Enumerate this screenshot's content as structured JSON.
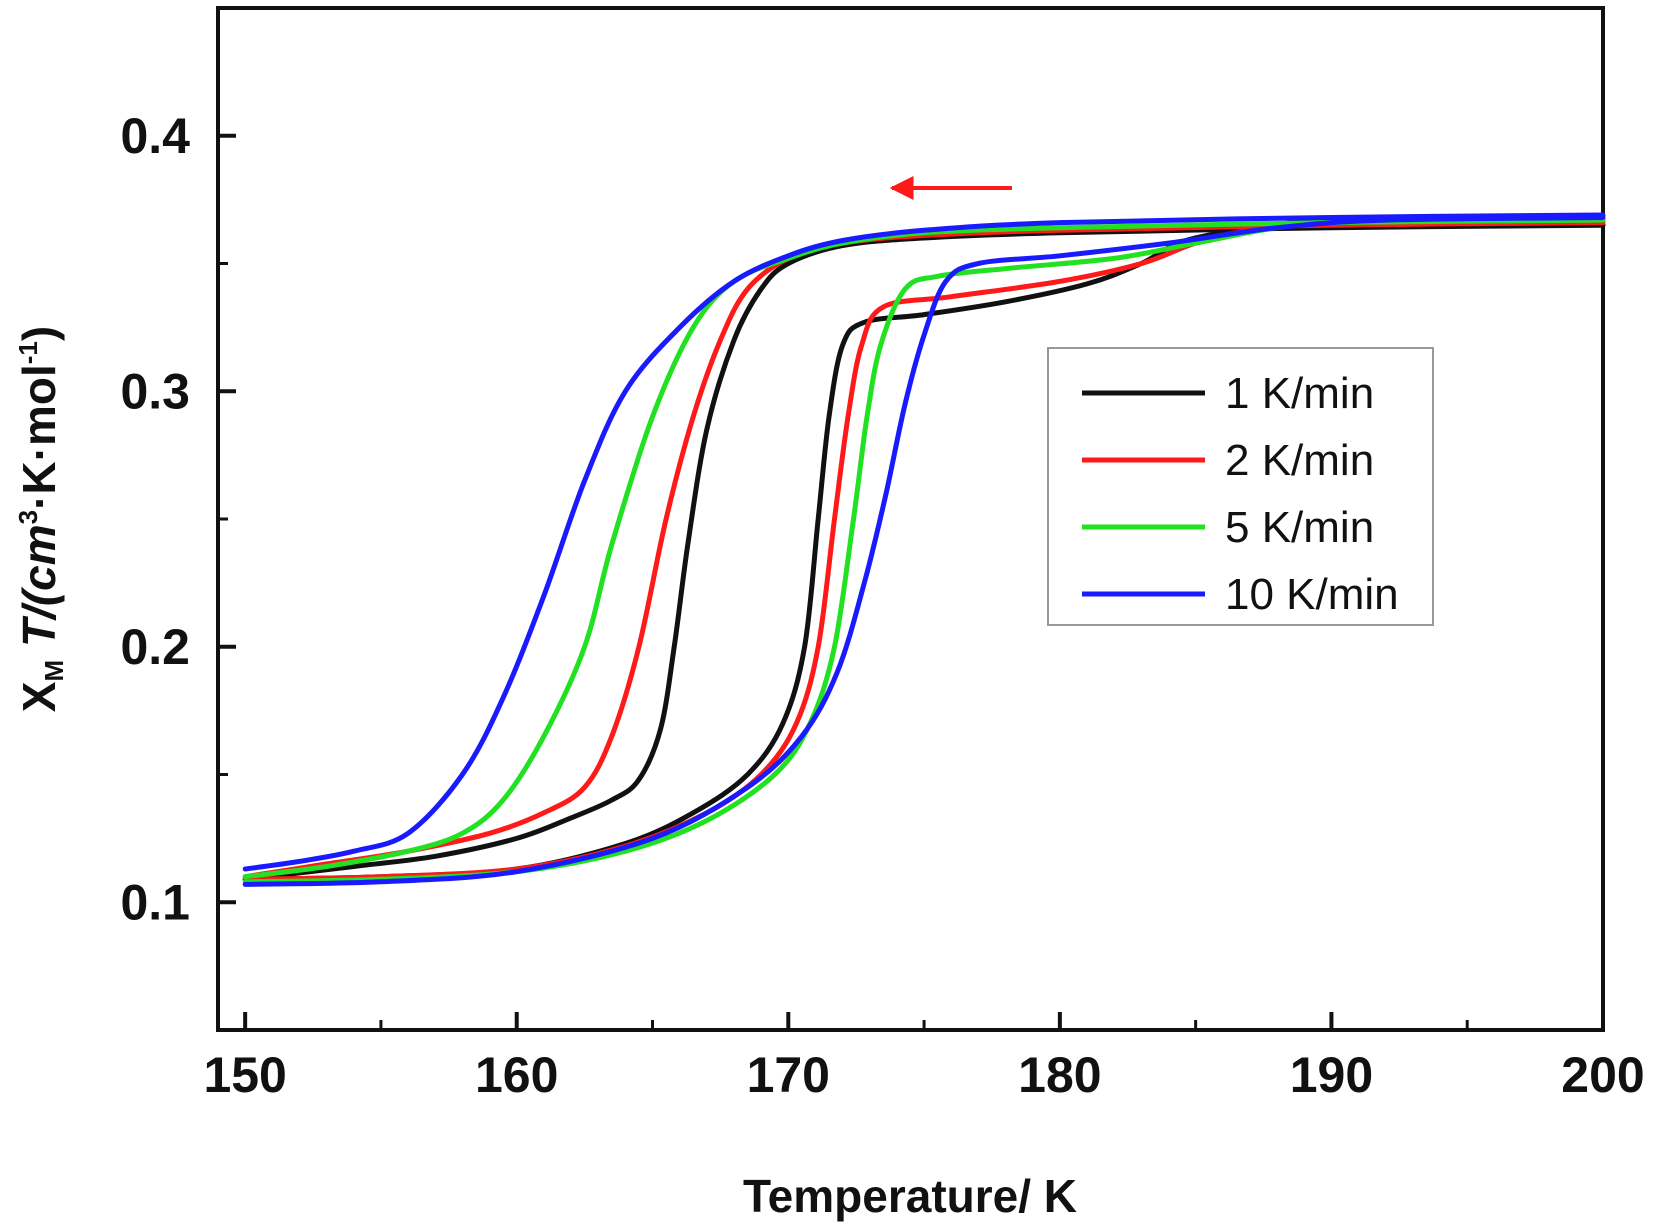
{
  "chart_data": {
    "type": "line",
    "xlabel": "Temperature/ K",
    "ylabel": {
      "main": "X",
      "sub": "M",
      "rest": " T/(cm",
      "sup1": "3",
      "mid": "·K·mol",
      "sup2": "-1",
      "end": ")"
    },
    "xlim": [
      149,
      200
    ],
    "ylim": [
      0.05,
      0.45
    ],
    "xticks": [
      150,
      160,
      170,
      180,
      190,
      200
    ],
    "xtick_labels": [
      "150",
      "160",
      "170",
      "180",
      "190",
      "200"
    ],
    "yticks": [
      0.1,
      0.2,
      0.3,
      0.4
    ],
    "ytick_labels": [
      "0.1",
      "0.2",
      "0.3",
      "0.4"
    ],
    "legend_position": "center-right",
    "annotation": "arrow pointing left (cooling)",
    "colors": {
      "arrow": "#ff1a1a",
      "axis": "#111111"
    },
    "series": [
      {
        "name": "1 K/min",
        "color": "#111111",
        "cooling": [
          [
            200,
            0.365
          ],
          [
            190,
            0.364
          ],
          [
            180,
            0.362
          ],
          [
            175,
            0.36
          ],
          [
            172,
            0.357
          ],
          [
            170,
            0.35
          ],
          [
            169,
            0.34
          ],
          [
            168,
            0.32
          ],
          [
            167,
            0.285
          ],
          [
            166.3,
            0.24
          ],
          [
            165.8,
            0.2
          ],
          [
            165.3,
            0.168
          ],
          [
            164.5,
            0.148
          ],
          [
            163.5,
            0.14
          ],
          [
            162,
            0.133
          ],
          [
            160,
            0.125
          ],
          [
            157,
            0.118
          ],
          [
            154,
            0.114
          ],
          [
            150,
            0.109
          ]
        ],
        "heating": [
          [
            150,
            0.109
          ],
          [
            155,
            0.11
          ],
          [
            160,
            0.113
          ],
          [
            164,
            0.123
          ],
          [
            166.5,
            0.135
          ],
          [
            168.5,
            0.15
          ],
          [
            169.8,
            0.17
          ],
          [
            170.6,
            0.2
          ],
          [
            171.1,
            0.25
          ],
          [
            171.5,
            0.29
          ],
          [
            172,
            0.318
          ],
          [
            172.8,
            0.327
          ],
          [
            175,
            0.33
          ],
          [
            178,
            0.335
          ],
          [
            181,
            0.342
          ],
          [
            183,
            0.35
          ],
          [
            185,
            0.36
          ],
          [
            190,
            0.367
          ],
          [
            200,
            0.368
          ]
        ]
      },
      {
        "name": "2 K/min",
        "color": "#ff1a1a",
        "cooling": [
          [
            200,
            0.366
          ],
          [
            190,
            0.365
          ],
          [
            180,
            0.363
          ],
          [
            175,
            0.361
          ],
          [
            172,
            0.358
          ],
          [
            170,
            0.352
          ],
          [
            168.5,
            0.34
          ],
          [
            167.5,
            0.32
          ],
          [
            166.5,
            0.29
          ],
          [
            165.5,
            0.25
          ],
          [
            164.5,
            0.2
          ],
          [
            163.5,
            0.165
          ],
          [
            162.5,
            0.145
          ],
          [
            161,
            0.135
          ],
          [
            159,
            0.127
          ],
          [
            156,
            0.12
          ],
          [
            153,
            0.115
          ],
          [
            150,
            0.11
          ]
        ],
        "heating": [
          [
            150,
            0.109
          ],
          [
            155,
            0.11
          ],
          [
            160,
            0.113
          ],
          [
            164,
            0.122
          ],
          [
            167,
            0.135
          ],
          [
            169,
            0.15
          ],
          [
            170.3,
            0.17
          ],
          [
            171.1,
            0.2
          ],
          [
            171.7,
            0.25
          ],
          [
            172.2,
            0.29
          ],
          [
            172.7,
            0.318
          ],
          [
            173.5,
            0.333
          ],
          [
            176,
            0.337
          ],
          [
            180,
            0.343
          ],
          [
            183,
            0.35
          ],
          [
            185,
            0.358
          ],
          [
            187,
            0.363
          ],
          [
            190,
            0.366
          ],
          [
            200,
            0.367
          ]
        ]
      },
      {
        "name": "5 K/min",
        "color": "#22e022",
        "cooling": [
          [
            200,
            0.367
          ],
          [
            190,
            0.366
          ],
          [
            180,
            0.364
          ],
          [
            175,
            0.362
          ],
          [
            172,
            0.358
          ],
          [
            170,
            0.352
          ],
          [
            168,
            0.343
          ],
          [
            166.5,
            0.325
          ],
          [
            165,
            0.29
          ],
          [
            163.5,
            0.24
          ],
          [
            162.5,
            0.2
          ],
          [
            161,
            0.165
          ],
          [
            159.5,
            0.14
          ],
          [
            158,
            0.127
          ],
          [
            156,
            0.12
          ],
          [
            153,
            0.114
          ],
          [
            150,
            0.11
          ]
        ],
        "heating": [
          [
            150,
            0.108
          ],
          [
            155,
            0.109
          ],
          [
            160,
            0.112
          ],
          [
            164,
            0.12
          ],
          [
            167,
            0.132
          ],
          [
            169.5,
            0.15
          ],
          [
            170.8,
            0.17
          ],
          [
            171.7,
            0.2
          ],
          [
            172.4,
            0.25
          ],
          [
            172.9,
            0.29
          ],
          [
            173.4,
            0.318
          ],
          [
            174.3,
            0.34
          ],
          [
            175.5,
            0.345
          ],
          [
            178,
            0.348
          ],
          [
            182,
            0.352
          ],
          [
            185,
            0.358
          ],
          [
            188,
            0.364
          ],
          [
            191,
            0.367
          ],
          [
            200,
            0.368
          ]
        ]
      },
      {
        "name": "10 K/min",
        "color": "#1a1aff",
        "cooling": [
          [
            200,
            0.369
          ],
          [
            190,
            0.368
          ],
          [
            180,
            0.366
          ],
          [
            175,
            0.363
          ],
          [
            172,
            0.359
          ],
          [
            170,
            0.353
          ],
          [
            168,
            0.343
          ],
          [
            166,
            0.325
          ],
          [
            164,
            0.3
          ],
          [
            162.5,
            0.265
          ],
          [
            161,
            0.22
          ],
          [
            159.5,
            0.18
          ],
          [
            158,
            0.15
          ],
          [
            156,
            0.127
          ],
          [
            154,
            0.12
          ],
          [
            152,
            0.116
          ],
          [
            150,
            0.113
          ]
        ],
        "heating": [
          [
            150,
            0.107
          ],
          [
            155,
            0.108
          ],
          [
            160,
            0.112
          ],
          [
            165,
            0.125
          ],
          [
            168.5,
            0.145
          ],
          [
            170.5,
            0.165
          ],
          [
            171.8,
            0.19
          ],
          [
            172.8,
            0.225
          ],
          [
            173.6,
            0.26
          ],
          [
            174.3,
            0.295
          ],
          [
            175,
            0.322
          ],
          [
            175.8,
            0.343
          ],
          [
            177,
            0.35
          ],
          [
            180,
            0.353
          ],
          [
            184,
            0.358
          ],
          [
            188,
            0.364
          ],
          [
            192,
            0.367
          ],
          [
            200,
            0.368
          ]
        ]
      }
    ]
  }
}
